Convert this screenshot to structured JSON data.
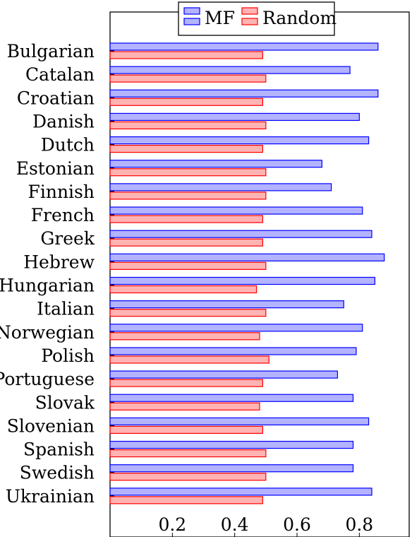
{
  "chart_data": {
    "type": "bar",
    "orientation": "horizontal",
    "categories": [
      "Bulgarian",
      "Catalan",
      "Croatian",
      "Danish",
      "Dutch",
      "Estonian",
      "Finnish",
      "French",
      "Greek",
      "Hebrew",
      "Hungarian",
      "Italian",
      "Norwegian",
      "Polish",
      "Portuguese",
      "Slovak",
      "Slovenian",
      "Spanish",
      "Swedish",
      "Ukrainian"
    ],
    "series": [
      {
        "name": "MF",
        "color": "#0000ff",
        "fill": "#b3b3ff",
        "values": [
          0.86,
          0.77,
          0.86,
          0.8,
          0.83,
          0.68,
          0.71,
          0.81,
          0.84,
          0.88,
          0.85,
          0.75,
          0.81,
          0.79,
          0.73,
          0.78,
          0.83,
          0.78,
          0.78,
          0.84
        ]
      },
      {
        "name": "Random",
        "color": "#ff0000",
        "fill": "#ffb3b3",
        "values": [
          0.49,
          0.5,
          0.49,
          0.5,
          0.49,
          0.5,
          0.5,
          0.49,
          0.49,
          0.5,
          0.47,
          0.5,
          0.48,
          0.51,
          0.49,
          0.48,
          0.49,
          0.5,
          0.5,
          0.49
        ]
      }
    ],
    "xlim": [
      0,
      0.96
    ],
    "xticks": [
      0.2,
      0.4,
      0.6,
      0.8
    ],
    "xtick_labels": [
      "0.2",
      "0.4",
      "0.6",
      "0.8"
    ],
    "title": "",
    "xlabel": "",
    "ylabel": "",
    "legend_position": "top-center",
    "grid": false
  }
}
